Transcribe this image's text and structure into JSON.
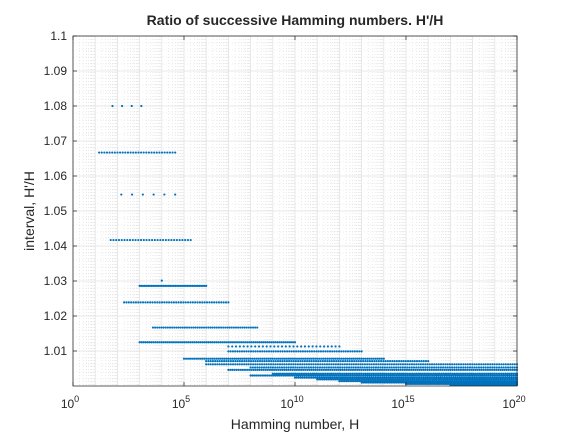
{
  "chart_data": {
    "type": "scatter",
    "title": "Ratio of successive Hamming numbers. H'/H",
    "xlabel": "Hamming number, H",
    "ylabel": "interval, H'/H",
    "xscale": "log",
    "xlim": [
      1,
      1e+20
    ],
    "ylim": [
      1.0,
      1.1
    ],
    "grid": true,
    "minor_grid": true,
    "marker_color": "#0072BD",
    "x_ticks": [
      {
        "base": "10",
        "exp": "0",
        "value": 1
      },
      {
        "base": "10",
        "exp": "5",
        "value": 100000
      },
      {
        "base": "10",
        "exp": "10",
        "value": 10000000000.0
      },
      {
        "base": "10",
        "exp": "15",
        "value": 1000000000000000.0
      },
      {
        "base": "10",
        "exp": "20",
        "value": 1e+20
      }
    ],
    "y_ticks": [
      "1.01",
      "1.02",
      "1.03",
      "1.04",
      "1.05",
      "1.06",
      "1.07",
      "1.08",
      "1.09",
      "1.1"
    ],
    "series": [
      {
        "y": 1.08,
        "x_start": 60,
        "x_end": 1200,
        "n": 4
      },
      {
        "y": 1.0667,
        "x_start": 15,
        "x_end": 40000,
        "n": 30
      },
      {
        "y": 1.0547,
        "x_start": 150,
        "x_end": 40000,
        "n": 6
      },
      {
        "y": 1.0417,
        "x_start": 50,
        "x_end": 200000,
        "n": 30
      },
      {
        "y": 1.0301,
        "x_start": 10000,
        "x_end": 10000,
        "n": 1
      },
      {
        "y": 1.0286,
        "x_start": 1000,
        "x_end": 1000000,
        "n": 40
      },
      {
        "y": 1.0239,
        "x_start": 200,
        "x_end": 10000000,
        "n": 45
      },
      {
        "y": 1.0167,
        "x_start": 4000,
        "x_end": 200000000,
        "n": 50
      },
      {
        "y": 1.0125,
        "x_start": 1000,
        "x_end": 10000000000.0,
        "n": 80
      },
      {
        "y": 1.0113,
        "x_start": 10000000.0,
        "x_end": 1000000000000.0,
        "n": 30
      },
      {
        "y": 1.0099,
        "x_start": 10000000.0,
        "x_end": 10000000000000.0,
        "n": 60
      },
      {
        "y": 1.0078,
        "x_start": 100000.0,
        "x_end": 100000000000000.0,
        "n": 100
      },
      {
        "y": 1.0071,
        "x_start": 1000000.0,
        "x_end": 1e+16,
        "n": 100
      },
      {
        "y": 1.0062,
        "x_start": 1000000.0,
        "x_end": 1e+20,
        "n": 140
      },
      {
        "y": 1.0053,
        "x_start": 100000000.0,
        "x_end": 1e+20,
        "n": 120
      },
      {
        "y": 1.0046,
        "x_start": 10000000.0,
        "x_end": 1e+20,
        "n": 140
      },
      {
        "y": 1.0035,
        "x_start": 1000000000.0,
        "x_end": 1e+20,
        "n": 130
      },
      {
        "y": 1.003,
        "x_start": 100000000.0,
        "x_end": 1e+20,
        "n": 140
      },
      {
        "y": 1.0024,
        "x_start": 10000000000.0,
        "x_end": 1e+20,
        "n": 120
      },
      {
        "y": 1.0019,
        "x_start": 100000000000.0,
        "x_end": 1e+20,
        "n": 110
      },
      {
        "y": 1.0014,
        "x_start": 1000000000000.0,
        "x_end": 1e+20,
        "n": 100
      },
      {
        "y": 1.001,
        "x_start": 10000000000000.0,
        "x_end": 1e+20,
        "n": 90
      },
      {
        "y": 1.0006,
        "x_start": 1000000000000000.0,
        "x_end": 1e+20,
        "n": 70
      },
      {
        "y": 1.0003,
        "x_start": 1e+17,
        "x_end": 1e+20,
        "n": 50
      }
    ]
  }
}
